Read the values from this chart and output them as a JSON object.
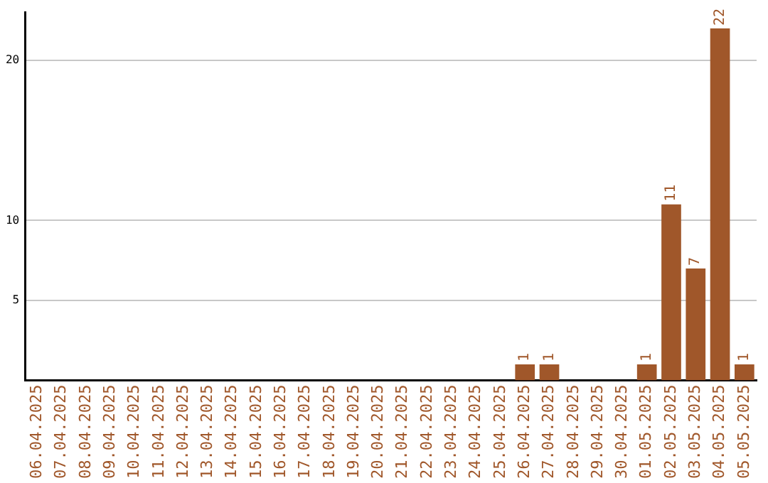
{
  "chart_data": {
    "type": "bar",
    "categories": [
      "06.04.2025",
      "07.04.2025",
      "08.04.2025",
      "09.04.2025",
      "10.04.2025",
      "11.04.2025",
      "12.04.2025",
      "13.04.2025",
      "14.04.2025",
      "15.04.2025",
      "16.04.2025",
      "17.04.2025",
      "18.04.2025",
      "19.04.2025",
      "20.04.2025",
      "21.04.2025",
      "22.04.2025",
      "23.04.2025",
      "24.04.2025",
      "25.04.2025",
      "26.04.2025",
      "27.04.2025",
      "28.04.2025",
      "29.04.2025",
      "30.04.2025",
      "01.05.2025",
      "02.05.2025",
      "03.05.2025",
      "04.05.2025",
      "05.05.2025"
    ],
    "values": [
      0,
      0,
      0,
      0,
      0,
      0,
      0,
      0,
      0,
      0,
      0,
      0,
      0,
      0,
      0,
      0,
      0,
      0,
      0,
      0,
      1,
      1,
      0,
      0,
      0,
      1,
      11,
      7,
      22,
      1
    ],
    "value_labels": [
      null,
      null,
      null,
      null,
      null,
      null,
      null,
      null,
      null,
      null,
      null,
      null,
      null,
      null,
      null,
      null,
      null,
      null,
      null,
      null,
      "1",
      "1",
      null,
      null,
      null,
      "1",
      "11",
      "7",
      "22",
      "1"
    ],
    "color": "#a0572a",
    "ylim": [
      0,
      23
    ],
    "yticks": [
      5,
      10,
      20
    ],
    "grid": "y",
    "legend": false
  }
}
